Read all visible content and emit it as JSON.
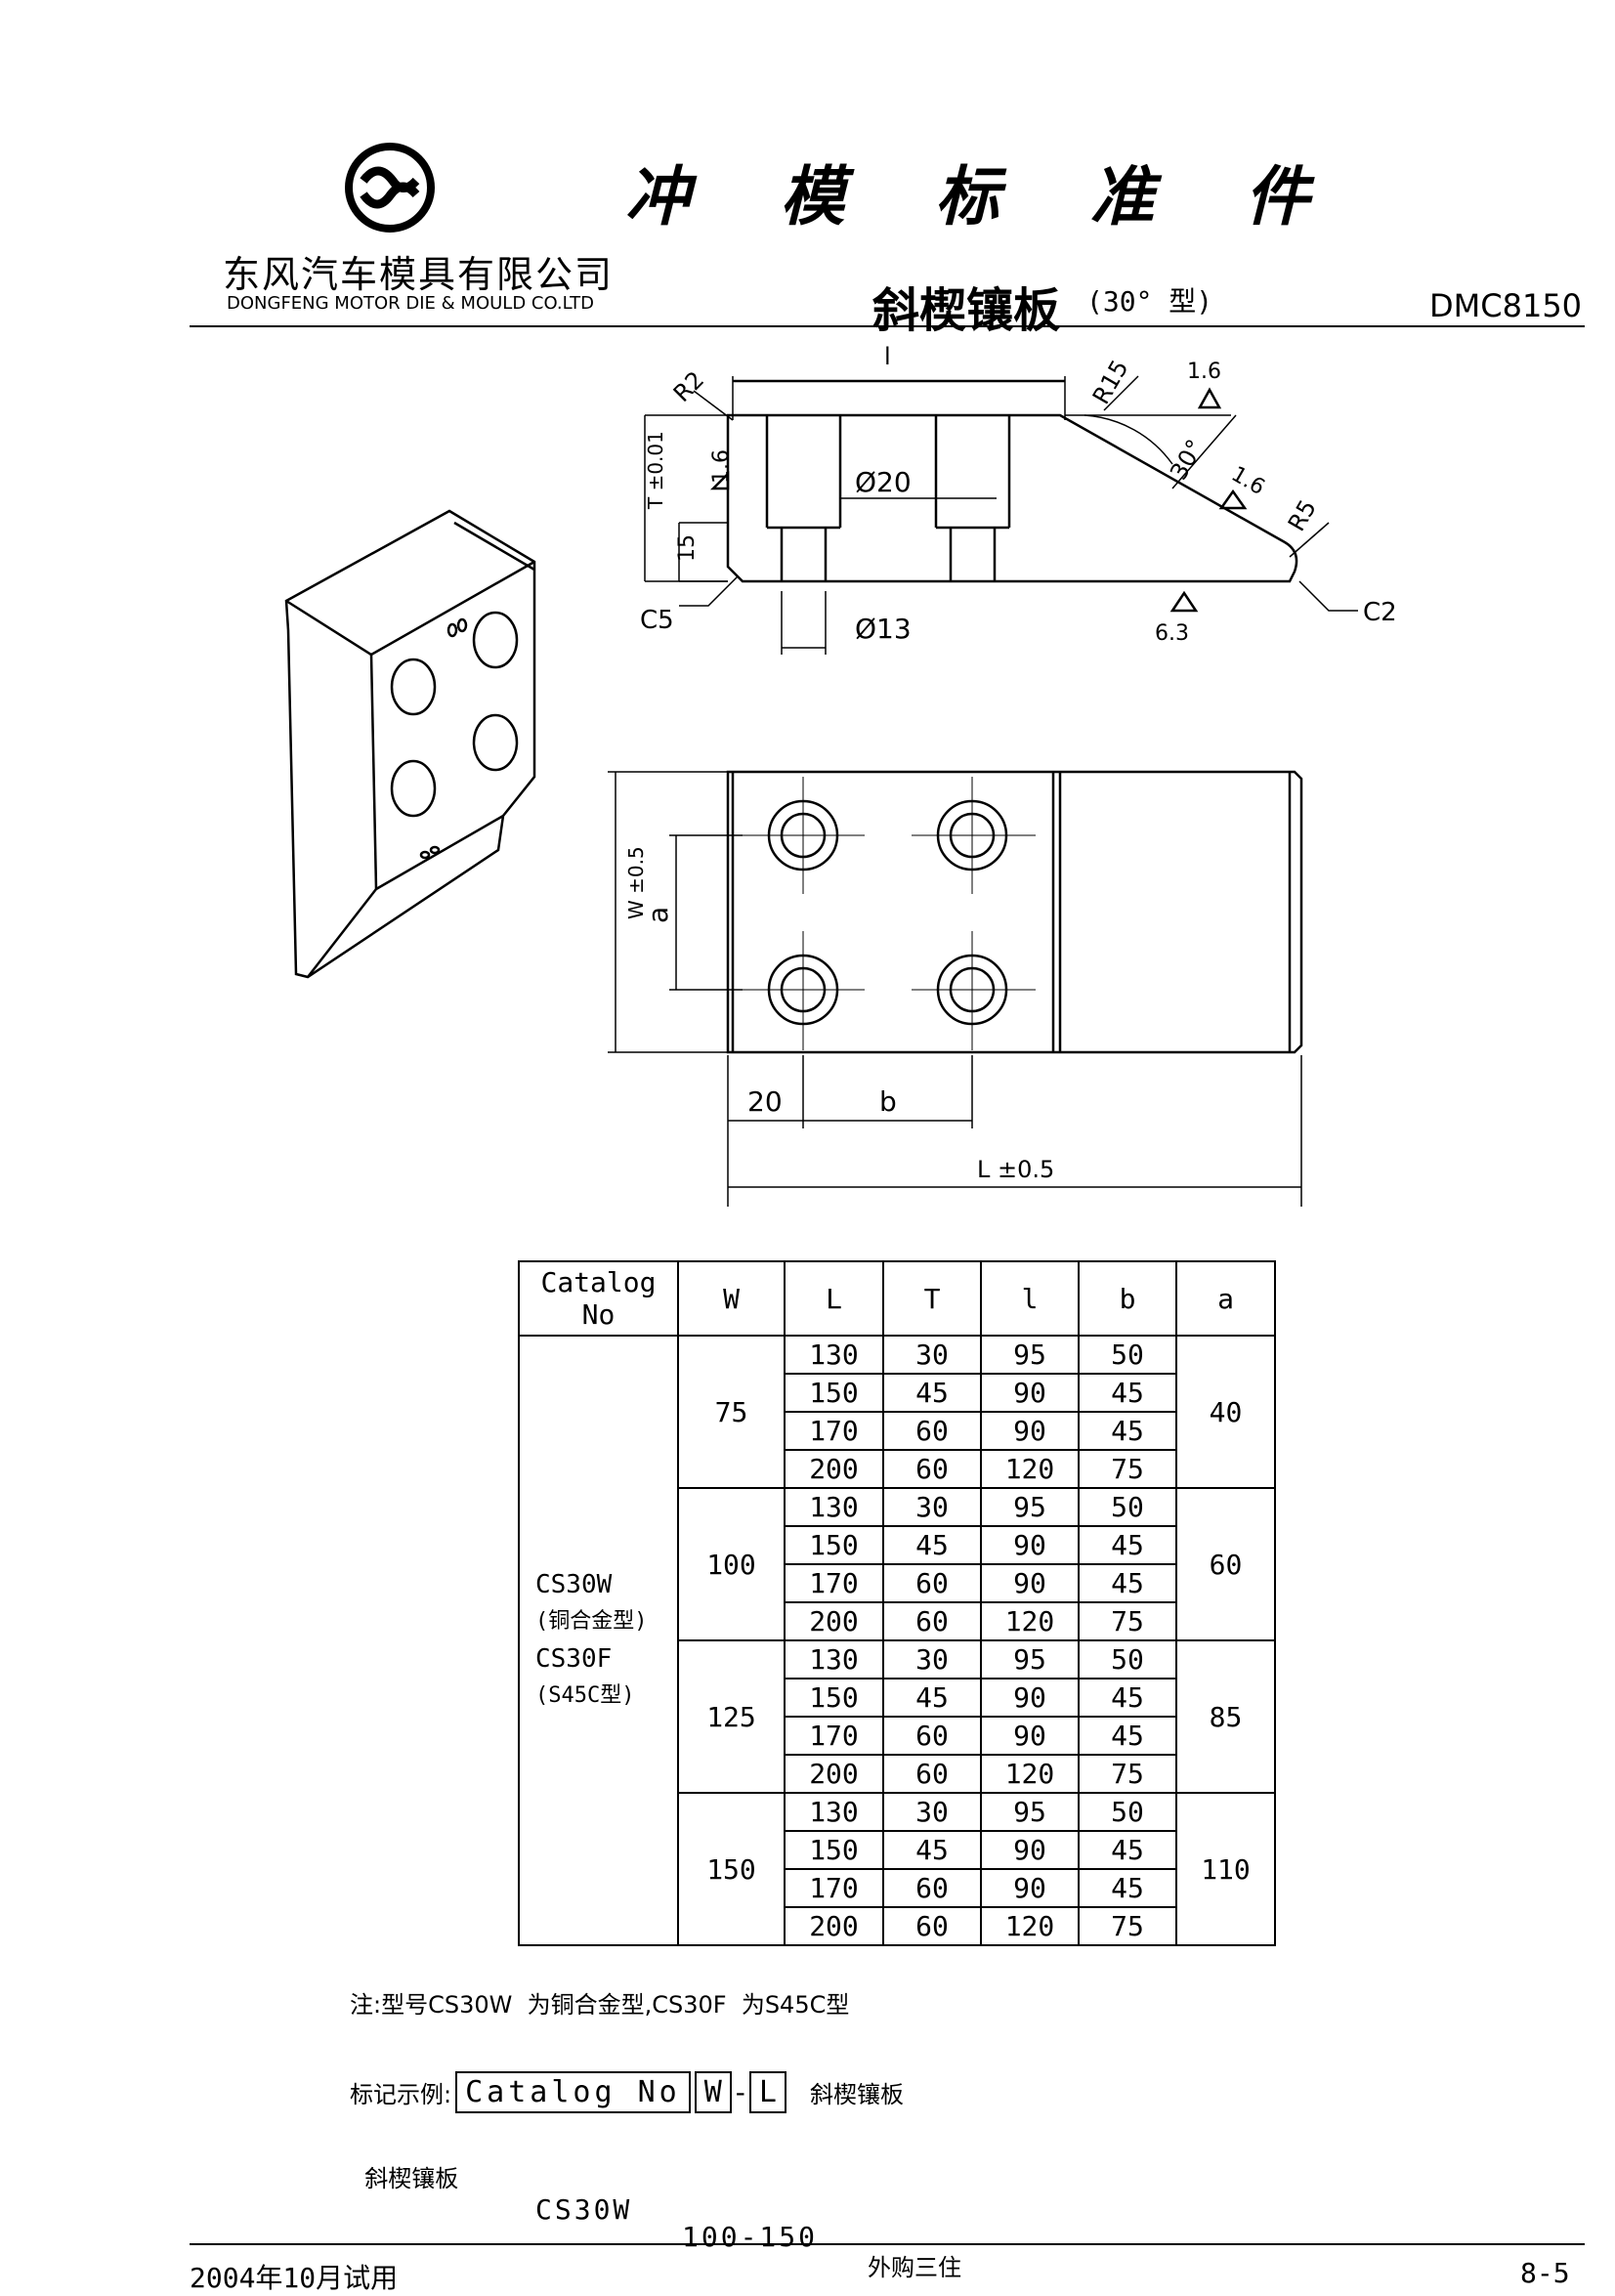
{
  "header": {
    "title_chars": [
      "冲",
      "模",
      "标",
      "准",
      "件"
    ],
    "company_cn": "东风汽车模具有限公司",
    "company_en": "DONGFENG MOTOR DIE & MOULD CO.LTD",
    "part_name": "斜楔镶板",
    "part_type": "(30° 型)",
    "doc_code": "DMC8150"
  },
  "drawing": {
    "front_view": {
      "labels": [
        "R2",
        "l",
        "R15",
        "1.6",
        "30°",
        "1.6",
        "R5",
        "T ±0.01",
        "1.6",
        "15",
        "Ø20",
        "C5",
        "Ø13",
        "6.3",
        "C2"
      ]
    },
    "top_view": {
      "labels": [
        "W ±0.5",
        "a",
        "20",
        "b",
        "L ±0.5"
      ]
    }
  },
  "table": {
    "headers": [
      "Catalog No",
      "W",
      "L",
      "T",
      "l",
      "b",
      "a"
    ],
    "catalog_lines": [
      "CS30W",
      "(铜合金型)",
      "CS30F",
      "(S45C型)"
    ],
    "groups": [
      {
        "W": "75",
        "a": "40",
        "rows": [
          [
            "130",
            "30",
            "95",
            "50"
          ],
          [
            "150",
            "45",
            "90",
            "45"
          ],
          [
            "170",
            "60",
            "90",
            "45"
          ],
          [
            "200",
            "60",
            "120",
            "75"
          ]
        ]
      },
      {
        "W": "100",
        "a": "60",
        "rows": [
          [
            "130",
            "30",
            "95",
            "50"
          ],
          [
            "150",
            "45",
            "90",
            "45"
          ],
          [
            "170",
            "60",
            "90",
            "45"
          ],
          [
            "200",
            "60",
            "120",
            "75"
          ]
        ]
      },
      {
        "W": "125",
        "a": "85",
        "rows": [
          [
            "130",
            "30",
            "95",
            "50"
          ],
          [
            "150",
            "45",
            "90",
            "45"
          ],
          [
            "170",
            "60",
            "90",
            "45"
          ],
          [
            "200",
            "60",
            "120",
            "75"
          ]
        ]
      },
      {
        "W": "150",
        "a": "110",
        "rows": [
          [
            "130",
            "30",
            "95",
            "50"
          ],
          [
            "150",
            "45",
            "90",
            "45"
          ],
          [
            "170",
            "60",
            "90",
            "45"
          ],
          [
            "200",
            "60",
            "120",
            "75"
          ]
        ]
      }
    ]
  },
  "notes": {
    "note_line": "注:型号CS30W  为铜合金型,CS30F  为S45C型",
    "mark_label": "标记示例:",
    "mark_box_catalog": "Catalog No",
    "mark_box_w": "W",
    "mark_dash": "-",
    "mark_box_l": "L",
    "mark_suffix": "斜楔镶板",
    "example_name": "斜楔镶板",
    "example_code": "CS30W",
    "example_dims": "100-150",
    "example_note": "外购三住"
  },
  "footer": {
    "left": "2004年10月试用",
    "right": "8-5"
  }
}
